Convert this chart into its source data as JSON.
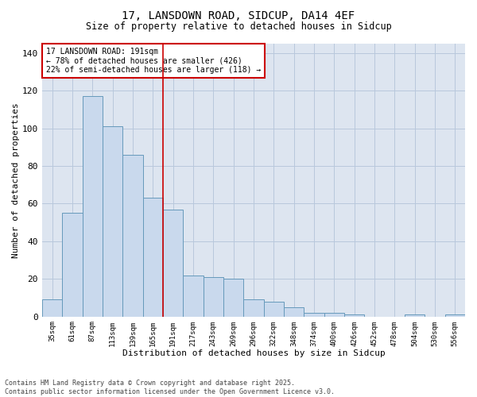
{
  "title1": "17, LANSDOWN ROAD, SIDCUP, DA14 4EF",
  "title2": "Size of property relative to detached houses in Sidcup",
  "xlabel": "Distribution of detached houses by size in Sidcup",
  "ylabel": "Number of detached properties",
  "bin_labels": [
    "35sqm",
    "61sqm",
    "87sqm",
    "113sqm",
    "139sqm",
    "165sqm",
    "191sqm",
    "217sqm",
    "243sqm",
    "269sqm",
    "296sqm",
    "322sqm",
    "348sqm",
    "374sqm",
    "400sqm",
    "426sqm",
    "452sqm",
    "478sqm",
    "504sqm",
    "530sqm",
    "556sqm"
  ],
  "bar_heights": [
    9,
    55,
    117,
    101,
    86,
    63,
    57,
    22,
    21,
    20,
    9,
    8,
    5,
    2,
    2,
    1,
    0,
    0,
    1,
    0,
    1
  ],
  "bar_color": "#c9d9ed",
  "bar_edge_color": "#6699bb",
  "vline_color": "#cc0000",
  "annotation_text": "17 LANSDOWN ROAD: 191sqm\n← 78% of detached houses are smaller (426)\n22% of semi-detached houses are larger (118) →",
  "annotation_box_color": "white",
  "annotation_box_edge": "#cc0000",
  "ylim": [
    0,
    145
  ],
  "yticks": [
    0,
    20,
    40,
    60,
    80,
    100,
    120,
    140
  ],
  "grid_color": "#b8c8dc",
  "background_color": "#dde5f0",
  "footer": "Contains HM Land Registry data © Crown copyright and database right 2025.\nContains public sector information licensed under the Open Government Licence v3.0.",
  "fig_width": 6.0,
  "fig_height": 5.0,
  "dpi": 100
}
